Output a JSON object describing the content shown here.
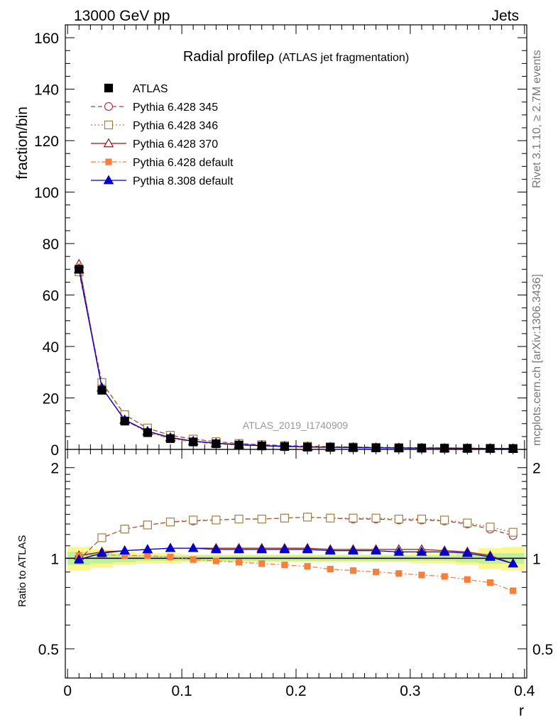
{
  "header": {
    "left": "13000 GeV pp",
    "right": "Jets"
  },
  "side_labels": {
    "top": "Rivet 3.1.10, ≥ 2.7M events",
    "bottom": "mcplots.cern.ch [arXiv:1306.3436]"
  },
  "watermark": "ATLAS_2019_I1740909",
  "chart_data": {
    "type": "line",
    "title_main": "Radial profile",
    "title_symbol": "ρ",
    "title_sub": "(ATLAS jet fragmentation)",
    "x": [
      0.01,
      0.03,
      0.05,
      0.07,
      0.09,
      0.11,
      0.13,
      0.15,
      0.17,
      0.19,
      0.21,
      0.23,
      0.25,
      0.27,
      0.29,
      0.31,
      0.33,
      0.35,
      0.37,
      0.39
    ],
    "xlabel": "r",
    "xlim": [
      -0.002,
      0.402
    ],
    "xticks": [
      0,
      0.1,
      0.2,
      0.3,
      0.4
    ],
    "xtick_labels": [
      "0",
      "0.1",
      "0.2",
      "0.3",
      "0.4"
    ],
    "main": {
      "ylabel": "fraction/bin",
      "ylim": [
        0,
        165
      ],
      "yticks": [
        0,
        20,
        40,
        60,
        80,
        100,
        120,
        140,
        160
      ],
      "ytick_labels": [
        "0",
        "20",
        "40",
        "60",
        "80",
        "100",
        "120",
        "140",
        "160"
      ]
    },
    "ratio": {
      "ylabel": "Ratio to ATLAS",
      "ylim": [
        0.4,
        2.3
      ],
      "log": true,
      "yticks": [
        0.5,
        1,
        2
      ],
      "ytick_labels": [
        "0.5",
        "1",
        "2"
      ],
      "band_inner": [
        0.05,
        0.04,
        0.03,
        0.02,
        0.02,
        0.02,
        0.02,
        0.02,
        0.02,
        0.02,
        0.02,
        0.02,
        0.02,
        0.02,
        0.02,
        0.02,
        0.02,
        0.03,
        0.04,
        0.04
      ],
      "band_outer": [
        0.09,
        0.07,
        0.05,
        0.04,
        0.04,
        0.03,
        0.03,
        0.03,
        0.03,
        0.03,
        0.03,
        0.03,
        0.03,
        0.03,
        0.03,
        0.04,
        0.04,
        0.05,
        0.08,
        0.09
      ]
    },
    "series": [
      {
        "name": "ATLAS",
        "color": "#000000",
        "marker": "filled-square",
        "line": "none",
        "values": [
          70,
          23,
          11,
          6.5,
          4.2,
          2.9,
          2.2,
          1.7,
          1.35,
          1.1,
          0.9,
          0.78,
          0.68,
          0.6,
          0.53,
          0.47,
          0.42,
          0.38,
          0.34,
          0.31
        ],
        "ratio": [
          1,
          1,
          1,
          1,
          1,
          1,
          1,
          1,
          1,
          1,
          1,
          1,
          1,
          1,
          1,
          1,
          1,
          1,
          1,
          1
        ]
      },
      {
        "name": "Pythia 6.428 345",
        "color": "#b03a48",
        "marker": "open-circle",
        "line": "dashed",
        "values": [
          69,
          26,
          13.5,
          8.2,
          5.5,
          4.0,
          3.0,
          2.3,
          1.85,
          1.5,
          1.25,
          1.07,
          0.93,
          0.82,
          0.72,
          0.64,
          0.57,
          0.51,
          0.44,
          0.38
        ],
        "ratio": [
          0.99,
          1.17,
          1.25,
          1.29,
          1.32,
          1.33,
          1.34,
          1.35,
          1.35,
          1.36,
          1.37,
          1.36,
          1.35,
          1.35,
          1.34,
          1.34,
          1.33,
          1.3,
          1.25,
          1.19
        ]
      },
      {
        "name": "Pythia 6.428 346",
        "color": "#a08040",
        "marker": "open-square",
        "line": "dotted",
        "values": [
          69,
          26,
          13.5,
          8.3,
          5.5,
          4.0,
          3.0,
          2.3,
          1.85,
          1.5,
          1.25,
          1.07,
          0.93,
          0.82,
          0.72,
          0.64,
          0.57,
          0.51,
          0.45,
          0.39
        ],
        "ratio": [
          0.99,
          1.17,
          1.25,
          1.29,
          1.32,
          1.34,
          1.34,
          1.35,
          1.35,
          1.36,
          1.37,
          1.36,
          1.36,
          1.36,
          1.35,
          1.35,
          1.34,
          1.31,
          1.27,
          1.22
        ]
      },
      {
        "name": "Pythia 6.428 370",
        "color": "#8b1a1a",
        "marker": "open-triangle",
        "line": "solid",
        "values": [
          72,
          24,
          11.5,
          7.1,
          4.6,
          3.2,
          2.4,
          1.85,
          1.47,
          1.2,
          0.98,
          0.84,
          0.73,
          0.65,
          0.57,
          0.51,
          0.45,
          0.4,
          0.35,
          0.3
        ],
        "ratio": [
          1.02,
          1.05,
          1.06,
          1.07,
          1.08,
          1.08,
          1.08,
          1.08,
          1.08,
          1.08,
          1.08,
          1.07,
          1.07,
          1.07,
          1.07,
          1.07,
          1.06,
          1.05,
          1.02,
          0.96
        ]
      },
      {
        "name": "Pythia 6.428 default",
        "color": "#f77f3c",
        "marker": "filled-square",
        "line": "dashdot",
        "values": [
          71,
          24,
          11.3,
          6.6,
          4.2,
          2.9,
          2.15,
          1.65,
          1.3,
          1.04,
          0.85,
          0.72,
          0.62,
          0.54,
          0.47,
          0.41,
          0.36,
          0.32,
          0.28,
          0.24
        ],
        "ratio": [
          1.02,
          1.03,
          1.02,
          1.02,
          1.01,
          0.99,
          0.98,
          0.97,
          0.96,
          0.95,
          0.94,
          0.92,
          0.91,
          0.9,
          0.89,
          0.88,
          0.87,
          0.85,
          0.83,
          0.78
        ]
      },
      {
        "name": "Pythia 8.308 default",
        "color": "#0000cc",
        "marker": "filled-triangle",
        "line": "solid",
        "values": [
          70,
          24,
          11.5,
          7.0,
          4.6,
          3.2,
          2.4,
          1.84,
          1.46,
          1.19,
          0.97,
          0.83,
          0.73,
          0.64,
          0.56,
          0.5,
          0.44,
          0.4,
          0.35,
          0.3
        ],
        "ratio": [
          0.99,
          1.04,
          1.06,
          1.07,
          1.08,
          1.08,
          1.07,
          1.07,
          1.07,
          1.07,
          1.07,
          1.06,
          1.06,
          1.06,
          1.05,
          1.05,
          1.05,
          1.04,
          1.01,
          0.96
        ]
      }
    ]
  }
}
